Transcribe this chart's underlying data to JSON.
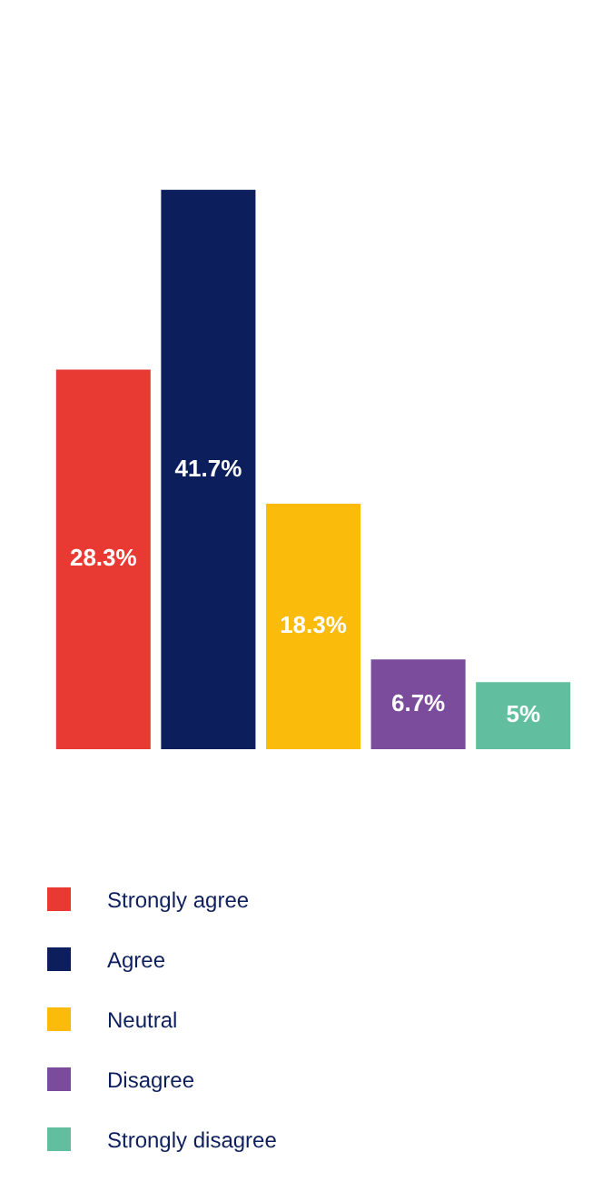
{
  "chart_data": {
    "type": "bar",
    "categories": [
      null
    ],
    "series": [
      {
        "name": "Strongly agree",
        "color": "#e83a33",
        "values": [
          28.3
        ],
        "value_labels": [
          "28.3%"
        ]
      },
      {
        "name": "Agree",
        "color": "#0c1f5c",
        "values": [
          41.7
        ],
        "value_labels": [
          "41.7%"
        ]
      },
      {
        "name": "Neutral",
        "color": "#fbbb0b",
        "values": [
          18.3
        ],
        "value_labels": [
          "18.3%"
        ]
      },
      {
        "name": "Disagree",
        "color": "#7b4c9c",
        "values": [
          6.7
        ],
        "value_labels": [
          "6.7%"
        ]
      },
      {
        "name": "Strongly disagree",
        "color": "#61bf9f",
        "values": [
          5
        ],
        "value_labels": [
          "5%"
        ]
      }
    ],
    "legend": "bottom",
    "tick_labels": false
  }
}
